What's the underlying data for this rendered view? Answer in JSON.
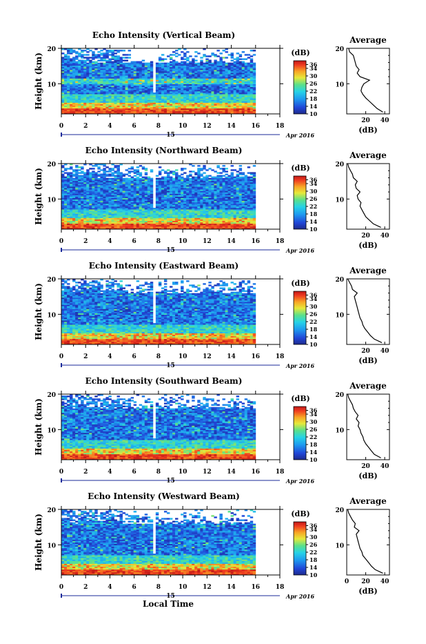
{
  "figure": {
    "x_axis_label": "Local Time",
    "date_label": "Apr 2016",
    "day_label": "15"
  },
  "colorbar": {
    "unit": "(dB)",
    "ticks": [
      "36",
      "34",
      "30",
      "26",
      "22",
      "18",
      "14",
      "10"
    ],
    "range": [
      10,
      38
    ]
  },
  "average_panel": {
    "title": "Average",
    "unit": "(dB)"
  },
  "chart_data": [
    {
      "type": "heatmap",
      "title": "Echo Intensity (Vertical Beam)",
      "ylabel": "Height (km)",
      "xlim": [
        0,
        18
      ],
      "ylim": [
        1.5,
        20
      ],
      "x_ticks": [
        "0",
        "2",
        "4",
        "6",
        "8",
        "10",
        "12",
        "14",
        "16",
        "18"
      ],
      "y_ticks": [
        "20",
        "10"
      ],
      "data_extent_hours": 16,
      "gap_hour": 7.7,
      "average_profile": {
        "xlim": [
          0,
          45
        ],
        "x_ticks": [
          "20",
          "40"
        ],
        "height_km": [
          2,
          3,
          4,
          5,
          6,
          7,
          8,
          9,
          10,
          11,
          12,
          13,
          14,
          15,
          16,
          17,
          18,
          19,
          20
        ],
        "value_db": [
          38,
          32,
          28,
          24,
          20,
          17,
          15,
          16,
          18,
          24,
          14,
          11,
          13,
          10,
          9,
          8,
          7,
          3,
          2
        ]
      }
    },
    {
      "type": "heatmap",
      "title": "Echo Intensity (Northward Beam)",
      "ylabel": "Height (km)",
      "xlim": [
        0,
        18
      ],
      "ylim": [
        1.5,
        20
      ],
      "x_ticks": [
        "0",
        "2",
        "4",
        "6",
        "8",
        "10",
        "12",
        "14",
        "16",
        "18"
      ],
      "y_ticks": [
        "20",
        "10"
      ],
      "data_extent_hours": 16,
      "gap_hour": 7.7,
      "average_profile": {
        "xlim": [
          0,
          45
        ],
        "x_ticks": [
          "20",
          "40"
        ],
        "height_km": [
          2,
          3,
          4,
          5,
          6,
          7,
          8,
          9,
          10,
          11,
          12,
          13,
          14,
          15,
          16,
          17,
          18,
          19,
          20
        ],
        "value_db": [
          36,
          28,
          24,
          20,
          18,
          16,
          14,
          15,
          12,
          11,
          14,
          10,
          9,
          11,
          7,
          6,
          4,
          2,
          1
        ]
      }
    },
    {
      "type": "heatmap",
      "title": "Echo Intensity (Eastward Beam)",
      "ylabel": "Height (km)",
      "xlim": [
        0,
        18
      ],
      "ylim": [
        1.5,
        20
      ],
      "x_ticks": [
        "0",
        "2",
        "4",
        "6",
        "8",
        "10",
        "12",
        "14",
        "16",
        "18"
      ],
      "y_ticks": [
        "20",
        "10"
      ],
      "data_extent_hours": 16,
      "gap_hour": 7.7,
      "average_profile": {
        "xlim": [
          0,
          45
        ],
        "x_ticks": [
          "20",
          "40"
        ],
        "height_km": [
          2,
          3,
          4,
          5,
          6,
          7,
          8,
          9,
          10,
          11,
          12,
          13,
          14,
          15,
          16,
          17,
          18,
          19,
          20
        ],
        "value_db": [
          37,
          29,
          25,
          22,
          19,
          17,
          16,
          14,
          13,
          12,
          11,
          10,
          9,
          8,
          11,
          6,
          5,
          3,
          1
        ]
      }
    },
    {
      "type": "heatmap",
      "title": "Echo Intensity (Southward Beam)",
      "ylabel": "Height (km)",
      "xlim": [
        0,
        18
      ],
      "ylim": [
        1.5,
        20
      ],
      "x_ticks": [
        "0",
        "2",
        "4",
        "6",
        "8",
        "10",
        "12",
        "14",
        "16",
        "18"
      ],
      "y_ticks": [
        "20",
        "10"
      ],
      "data_extent_hours": 16,
      "gap_hour": 7.7,
      "average_profile": {
        "xlim": [
          0,
          45
        ],
        "x_ticks": [
          "20",
          "40"
        ],
        "height_km": [
          2,
          3,
          4,
          5,
          6,
          7,
          8,
          9,
          10,
          11,
          12,
          13,
          14,
          15,
          16,
          17,
          18,
          19,
          20
        ],
        "value_db": [
          36,
          29,
          26,
          23,
          20,
          18,
          17,
          15,
          14,
          12,
          13,
          10,
          12,
          9,
          7,
          6,
          4,
          2,
          1
        ]
      }
    },
    {
      "type": "heatmap",
      "title": "Echo Intensity (Westward Beam)",
      "ylabel": "Height (km)",
      "xlim": [
        0,
        18
      ],
      "ylim": [
        1.5,
        20
      ],
      "x_ticks": [
        "0",
        "2",
        "4",
        "6",
        "8",
        "10",
        "12",
        "14",
        "16",
        "18"
      ],
      "y_ticks": [
        "20",
        "10"
      ],
      "data_extent_hours": 16,
      "gap_hour": 7.7,
      "average_profile": {
        "xlim": [
          0,
          45
        ],
        "x_ticks": [
          "0",
          "20",
          "40"
        ],
        "height_km": [
          2,
          3,
          4,
          5,
          6,
          7,
          8,
          9,
          10,
          11,
          12,
          13,
          14,
          15,
          16,
          17,
          18,
          19,
          20
        ],
        "value_db": [
          38,
          30,
          26,
          23,
          20,
          17,
          16,
          14,
          13,
          12,
          11,
          10,
          13,
          8,
          9,
          6,
          4,
          2,
          1
        ]
      }
    }
  ]
}
